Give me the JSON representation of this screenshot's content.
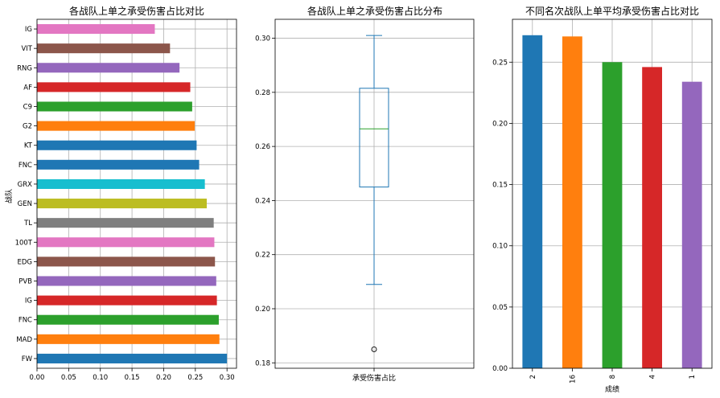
{
  "chart_data": [
    {
      "type": "bar",
      "orientation": "horizontal",
      "title": "各战队上单之承受伤害占比对比",
      "ylabel": "战队",
      "xlabel": "",
      "categories": [
        "FW",
        "MAD",
        "FNC",
        "IG",
        "PVB",
        "EDG",
        "100T",
        "TL",
        "GEN",
        "GRX",
        "FNC",
        "KT",
        "G2",
        "C9",
        "AF",
        "RNG",
        "VIT",
        "IG"
      ],
      "values": [
        0.3,
        0.288,
        0.287,
        0.284,
        0.283,
        0.281,
        0.28,
        0.279,
        0.268,
        0.265,
        0.256,
        0.252,
        0.249,
        0.245,
        0.242,
        0.225,
        0.21,
        0.186
      ],
      "colors": [
        "#1f77b4",
        "#ff7f0e",
        "#2ca02c",
        "#d62728",
        "#9467bd",
        "#8c564b",
        "#e377c2",
        "#7f7f7f",
        "#bcbd22",
        "#17becf",
        "#1f77b4",
        "#1f77b4",
        "#ff7f0e",
        "#2ca02c",
        "#d62728",
        "#9467bd",
        "#8c564b",
        "#e377c2"
      ],
      "xlim": [
        0,
        0.315
      ],
      "xticks": [
        "0.00",
        "0.05",
        "0.10",
        "0.15",
        "0.20",
        "0.25",
        "0.30"
      ],
      "grid": true
    },
    {
      "type": "box",
      "title": "各战队上单之承受伤害占比分布",
      "category": "承受伤害占比",
      "ylim": [
        0.178,
        0.307
      ],
      "yticks": [
        "0.18",
        "0.20",
        "0.22",
        "0.24",
        "0.26",
        "0.28",
        "0.30"
      ],
      "stats": {
        "whisker_low": 0.209,
        "q1": 0.245,
        "median": 0.2665,
        "q3": 0.2815,
        "whisker_high": 0.301,
        "outliers": [
          0.185
        ]
      },
      "colors": {
        "box": "#1f77b4",
        "median": "#2ca02c"
      },
      "grid": true
    },
    {
      "type": "bar",
      "title": "不同名次战队上单平均承受伤害占比对比",
      "xlabel": "成绩",
      "ylabel": "",
      "categories": [
        "2",
        "16",
        "8",
        "4",
        "1"
      ],
      "values": [
        0.272,
        0.271,
        0.25,
        0.246,
        0.234
      ],
      "colors": [
        "#1f77b4",
        "#ff7f0e",
        "#2ca02c",
        "#d62728",
        "#9467bd"
      ],
      "ylim": [
        0,
        0.285
      ],
      "yticks": [
        "0.00",
        "0.05",
        "0.10",
        "0.15",
        "0.20",
        "0.25"
      ],
      "grid": true
    }
  ]
}
